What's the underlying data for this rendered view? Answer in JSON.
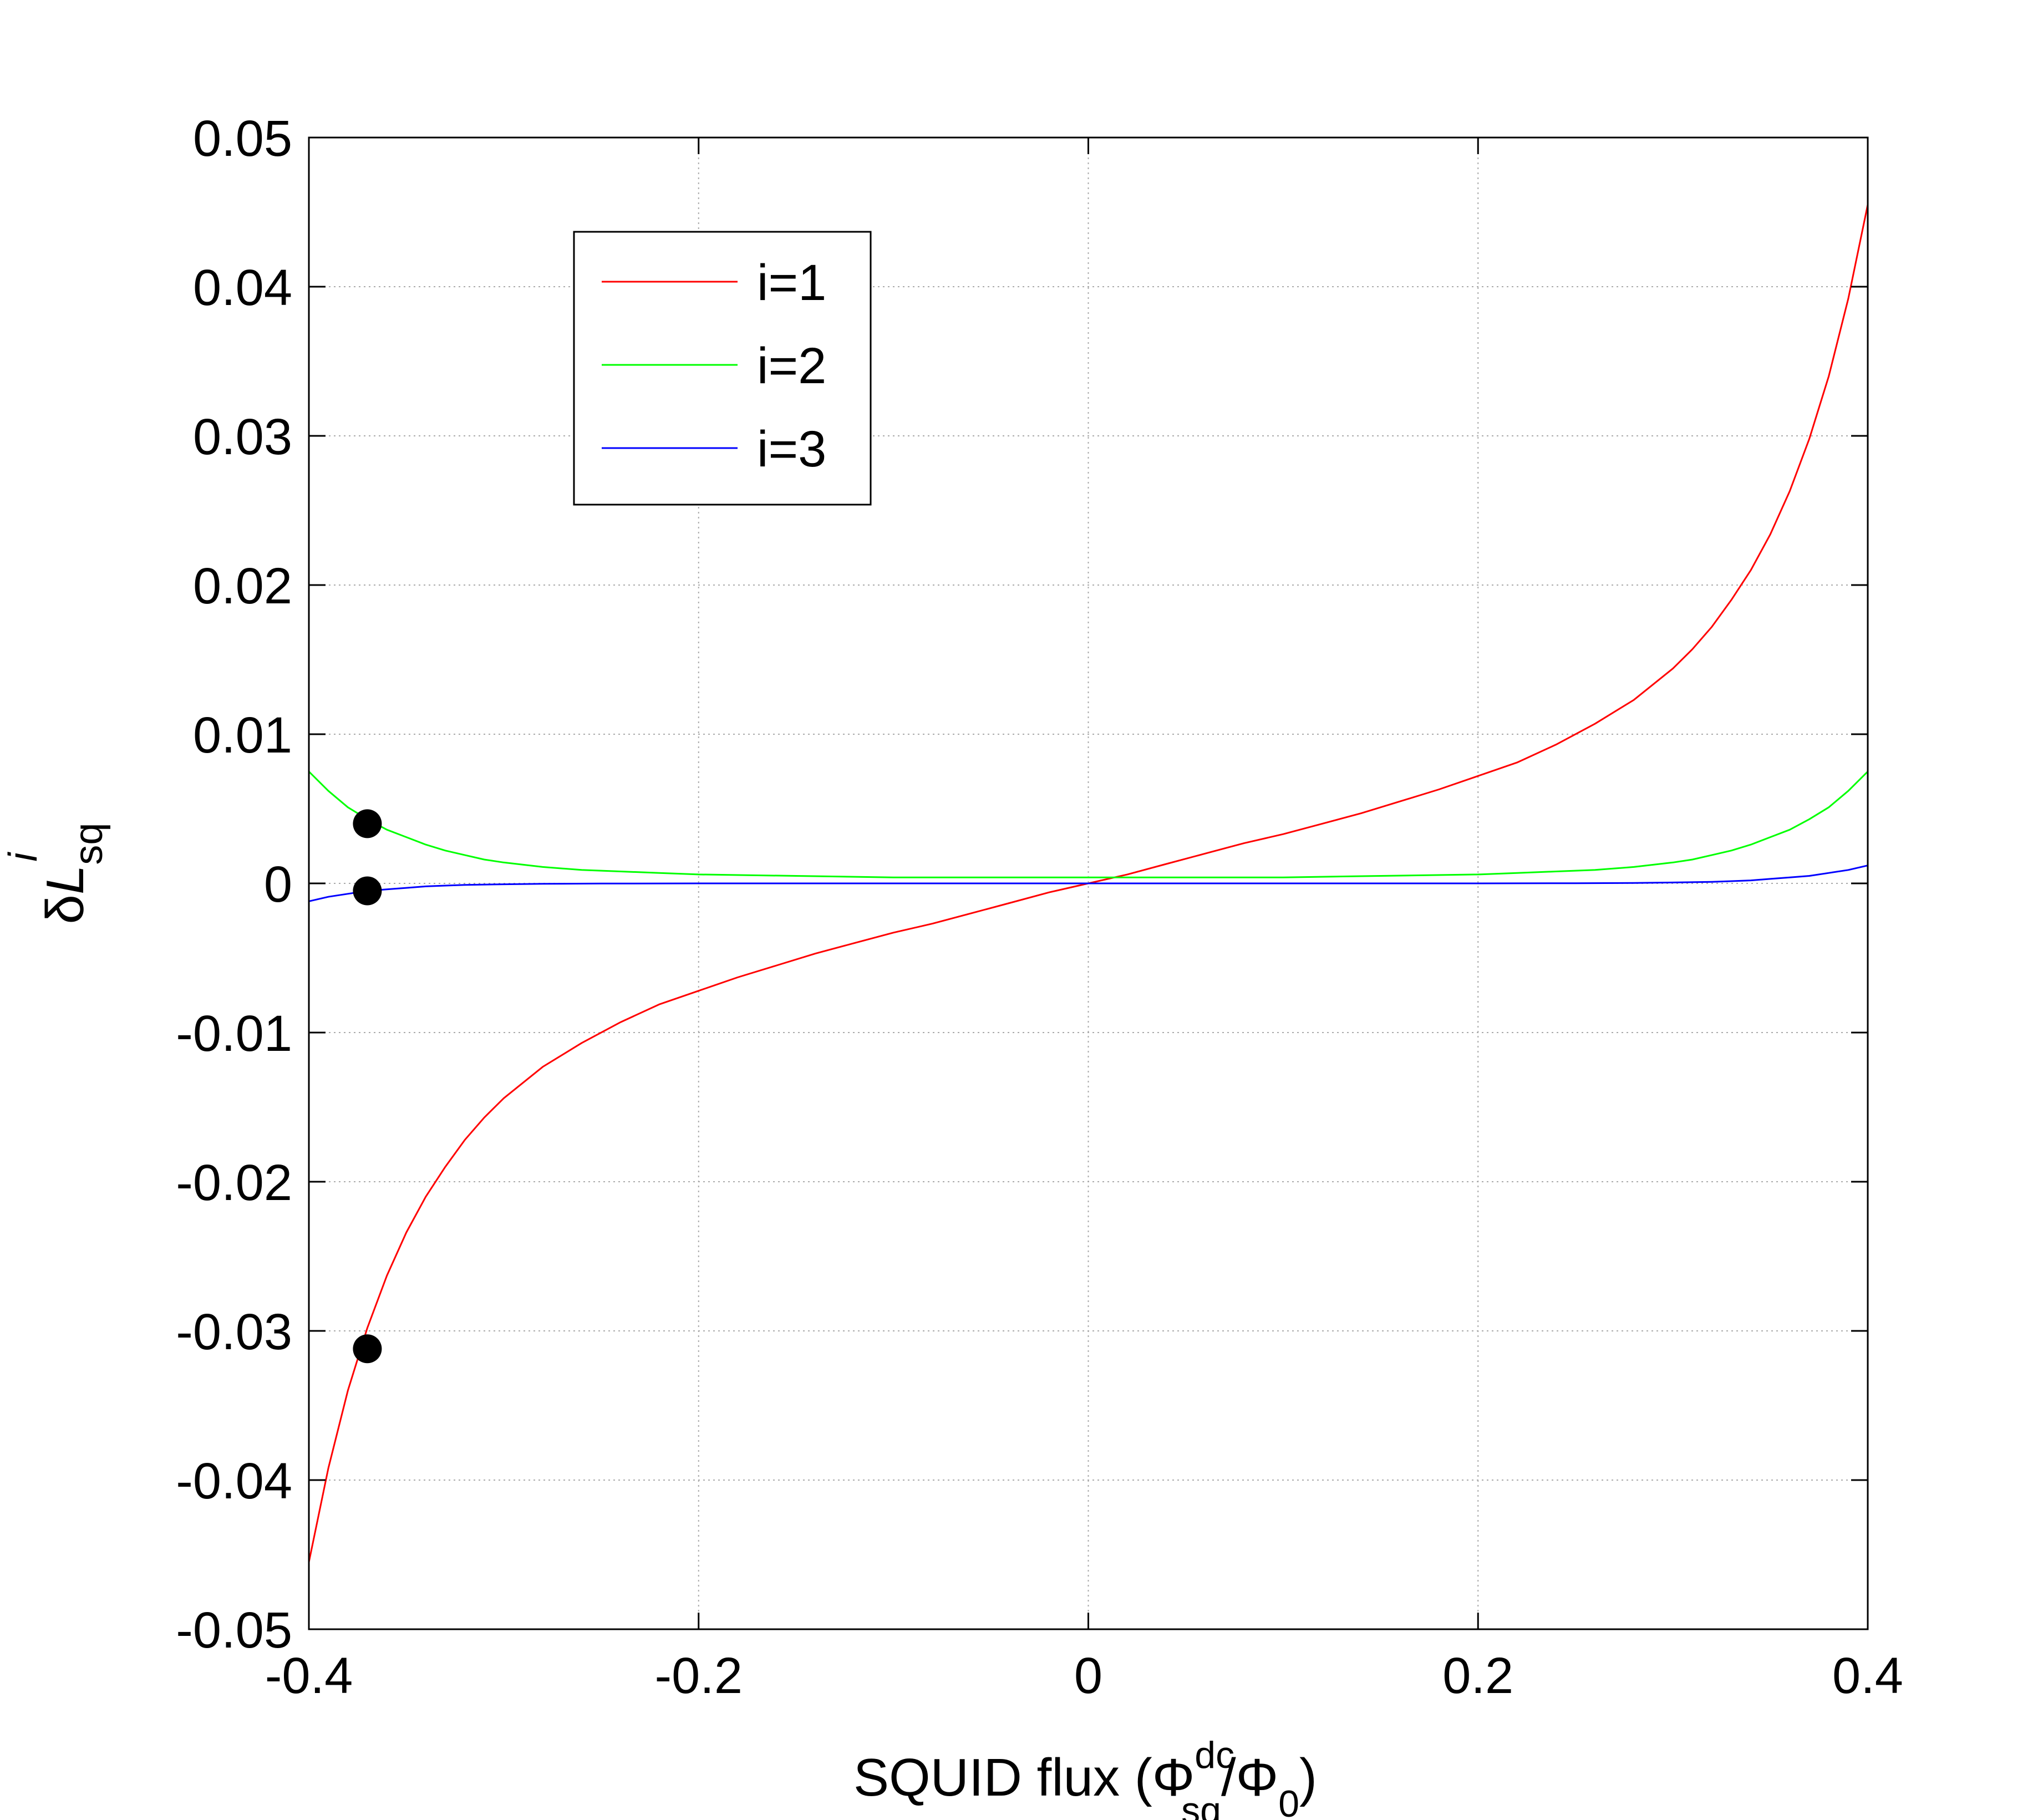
{
  "chart_data": {
    "type": "line",
    "xlim": [
      -0.4,
      0.4
    ],
    "ylim": [
      -0.05,
      0.05
    ],
    "x_ticks": [
      -0.4,
      -0.2,
      0,
      0.2,
      0.4
    ],
    "x_tick_labels": [
      "-0.4",
      "-0.2",
      "0",
      "0.2",
      "0.4"
    ],
    "y_ticks": [
      0.05,
      0.04,
      0.03,
      0.02,
      0.01,
      0,
      -0.01,
      -0.02,
      -0.03,
      -0.04,
      -0.05
    ],
    "y_tick_labels": [
      "0.05",
      "0.04",
      "0.03",
      "0.02",
      "0.01",
      "0",
      "-0.01",
      "-0.02",
      "-0.03",
      "-0.04",
      "-0.05"
    ],
    "grid": true,
    "legend_position": "upper-left",
    "xlabel": {
      "main": "SQUID flux (Φ",
      "sup": "dc",
      "sub": "sq",
      "mid": "/Φ",
      "sub2": "0",
      "end": ")"
    },
    "ylabel": {
      "prefix": "δ",
      "italic": "L",
      "sub": "sq",
      "sup": "i"
    },
    "series": [
      {
        "name": "i=1",
        "color": "#ff0000",
        "x": [
          -0.4,
          -0.39,
          -0.38,
          -0.37,
          -0.36,
          -0.35,
          -0.34,
          -0.33,
          -0.32,
          -0.31,
          -0.3,
          -0.28,
          -0.26,
          -0.24,
          -0.22,
          -0.2,
          -0.18,
          -0.16,
          -0.14,
          -0.12,
          -0.1,
          -0.08,
          -0.06,
          -0.04,
          -0.02,
          0,
          0.02,
          0.04,
          0.06,
          0.08,
          0.1,
          0.12,
          0.14,
          0.16,
          0.18,
          0.2,
          0.22,
          0.24,
          0.26,
          0.28,
          0.3,
          0.31,
          0.32,
          0.33,
          0.34,
          0.35,
          0.36,
          0.37,
          0.38,
          0.39,
          0.4
        ],
        "y": [
          -0.0455,
          -0.0392,
          -0.034,
          -0.0298,
          -0.0263,
          -0.0234,
          -0.021,
          -0.019,
          -0.0172,
          -0.0157,
          -0.0144,
          -0.0123,
          -0.0107,
          -0.0093,
          -0.0081,
          -0.0072,
          -0.0063,
          -0.0055,
          -0.0047,
          -0.004,
          -0.0033,
          -0.0027,
          -0.002,
          -0.0013,
          -0.0006,
          0.0,
          0.0006,
          0.0013,
          0.002,
          0.0027,
          0.0033,
          0.004,
          0.0047,
          0.0055,
          0.0063,
          0.0072,
          0.0081,
          0.0093,
          0.0107,
          0.0123,
          0.0144,
          0.0157,
          0.0172,
          0.019,
          0.021,
          0.0234,
          0.0263,
          0.0298,
          0.034,
          0.0392,
          0.0455
        ]
      },
      {
        "name": "i=2",
        "color": "#00ff00",
        "x": [
          -0.4,
          -0.39,
          -0.38,
          -0.37,
          -0.36,
          -0.35,
          -0.34,
          -0.33,
          -0.32,
          -0.31,
          -0.3,
          -0.28,
          -0.26,
          -0.24,
          -0.22,
          -0.2,
          -0.15,
          -0.1,
          -0.05,
          0,
          0.05,
          0.1,
          0.15,
          0.2,
          0.22,
          0.24,
          0.26,
          0.28,
          0.3,
          0.31,
          0.32,
          0.33,
          0.34,
          0.35,
          0.36,
          0.37,
          0.38,
          0.39,
          0.4
        ],
        "y": [
          0.0075,
          0.0062,
          0.0051,
          0.0043,
          0.0036,
          0.0031,
          0.0026,
          0.0022,
          0.0019,
          0.0016,
          0.0014,
          0.0011,
          0.0009,
          0.0008,
          0.0007,
          0.0006,
          0.0005,
          0.0004,
          0.0004,
          0.0004,
          0.0004,
          0.0004,
          0.0005,
          0.0006,
          0.0007,
          0.0008,
          0.0009,
          0.0011,
          0.0014,
          0.0016,
          0.0019,
          0.0022,
          0.0026,
          0.0031,
          0.0036,
          0.0043,
          0.0051,
          0.0062,
          0.0075
        ]
      },
      {
        "name": "i=3",
        "color": "#0000ff",
        "x": [
          -0.4,
          -0.39,
          -0.38,
          -0.37,
          -0.36,
          -0.35,
          -0.34,
          -0.33,
          -0.32,
          -0.3,
          -0.28,
          -0.25,
          -0.2,
          -0.1,
          0,
          0.1,
          0.2,
          0.25,
          0.28,
          0.3,
          0.32,
          0.33,
          0.34,
          0.35,
          0.36,
          0.37,
          0.38,
          0.39,
          0.4
        ],
        "y": [
          -0.0012,
          -0.0009,
          -0.0007,
          -0.0005,
          -0.0004,
          -0.0003,
          -0.0002,
          -0.00015,
          -0.0001,
          -6e-05,
          -3e-05,
          -1e-05,
          0.0,
          0.0,
          0.0,
          0.0,
          0.0,
          1e-05,
          3e-05,
          6e-05,
          0.0001,
          0.00015,
          0.0002,
          0.0003,
          0.0004,
          0.0005,
          0.0007,
          0.0009,
          0.0012
        ]
      }
    ],
    "markers": {
      "color": "#000000",
      "points": [
        {
          "x": -0.37,
          "y": 0.004
        },
        {
          "x": -0.37,
          "y": -0.0005
        },
        {
          "x": -0.37,
          "y": -0.0312
        }
      ]
    }
  }
}
